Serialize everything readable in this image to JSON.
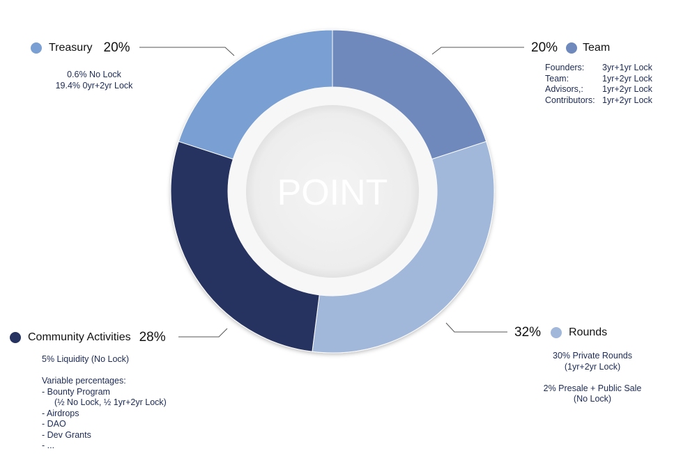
{
  "chart_data": {
    "type": "pie",
    "center_label": "POINT",
    "slices": [
      {
        "name": "Team",
        "value": 20,
        "pct_label": "20%",
        "color": "#6f89bd"
      },
      {
        "name": "Rounds",
        "value": 32,
        "pct_label": "32%",
        "color": "#a2b8da"
      },
      {
        "name": "Community Activities",
        "value": 28,
        "pct_label": "28%",
        "color": "#26325f"
      },
      {
        "name": "Treasury",
        "value": 20,
        "pct_label": "20%",
        "color": "#7a9fd2"
      }
    ]
  },
  "notes": {
    "treasury": [
      "0.6% No Lock",
      "19.4% 0yr+2yr Lock"
    ],
    "team": [
      {
        "role": "Founders:",
        "lock": "3yr+1yr Lock"
      },
      {
        "role": "Team:",
        "lock": "1yr+2yr Lock"
      },
      {
        "role": "Advisors,:",
        "lock": "1yr+2yr Lock"
      },
      {
        "role": "Contributors:",
        "lock": "1yr+2yr Lock"
      }
    ],
    "rounds": [
      "30% Private Rounds",
      "(1yr+2yr Lock)",
      "",
      "2% Presale + Public Sale",
      "(No Lock)"
    ],
    "community": [
      "5% Liquidity (No Lock)",
      "",
      "Variable percentages:",
      "- Bounty Program",
      "(½ No Lock, ½ 1yr+2yr Lock)",
      "- Airdrops",
      "- DAO",
      "- Dev Grants",
      "- ..."
    ]
  }
}
